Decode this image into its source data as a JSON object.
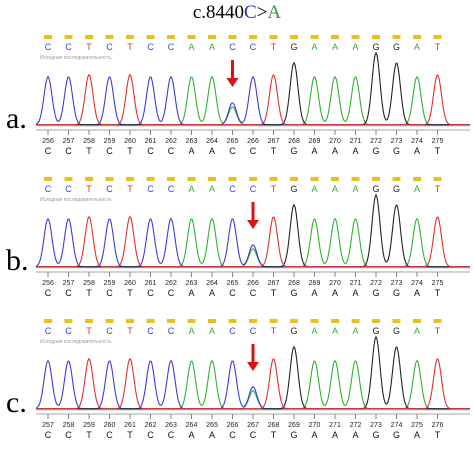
{
  "title": {
    "prefix": "c.8440",
    "ref": "C",
    "sep": ">",
    "alt": "A"
  },
  "caption_small": "Исходная последовательность",
  "colors": {
    "A": "#2fb22f",
    "C": "#3d3dd8",
    "G": "#222222",
    "T": "#e03030",
    "arrow": "#dd1111"
  },
  "panels": [
    {
      "label": "a.",
      "top_bases": [
        "C",
        "C",
        "T",
        "C",
        "T",
        "C",
        "C",
        "A",
        "A",
        "C",
        "C",
        "T",
        "G",
        "A",
        "A",
        "A",
        "G",
        "G",
        "A",
        "T"
      ],
      "bottom_bases": [
        "C",
        "C",
        "T",
        "C",
        "T",
        "C",
        "C",
        "A",
        "A",
        "C",
        "C",
        "T",
        "G",
        "A",
        "A",
        "A",
        "G",
        "G",
        "A",
        "T"
      ],
      "positions": [
        "256",
        "257",
        "258",
        "259",
        "260",
        "261",
        "262",
        "263",
        "264",
        "265",
        "266",
        "267",
        "268",
        "269",
        "270",
        "271",
        "272",
        "273",
        "274",
        "275"
      ],
      "mutant_index": 9
    },
    {
      "label": "b.",
      "top_bases": [
        "C",
        "C",
        "T",
        "C",
        "T",
        "C",
        "C",
        "A",
        "A",
        "C",
        "C",
        "T",
        "G",
        "A",
        "A",
        "A",
        "G",
        "G",
        "A",
        "T"
      ],
      "bottom_bases": [
        "C",
        "C",
        "T",
        "C",
        "T",
        "C",
        "C",
        "A",
        "A",
        "C",
        "C",
        "T",
        "G",
        "A",
        "A",
        "A",
        "G",
        "G",
        "A",
        "T"
      ],
      "positions": [
        "256",
        "257",
        "258",
        "259",
        "260",
        "261",
        "262",
        "263",
        "264",
        "265",
        "266",
        "267",
        "268",
        "269",
        "270",
        "271",
        "272",
        "273",
        "274",
        "275"
      ],
      "mutant_index": 10
    },
    {
      "label": "c.",
      "top_bases": [
        "C",
        "C",
        "T",
        "C",
        "T",
        "C",
        "C",
        "A",
        "A",
        "C",
        "C",
        "T",
        "G",
        "A",
        "A",
        "A",
        "G",
        "G",
        "A",
        "T"
      ],
      "bottom_bases": [
        "C",
        "C",
        "T",
        "C",
        "T",
        "C",
        "C",
        "A",
        "A",
        "C",
        "C",
        "T",
        "G",
        "A",
        "A",
        "A",
        "G",
        "G",
        "A",
        "T"
      ],
      "positions": [
        "257",
        "258",
        "259",
        "260",
        "261",
        "262",
        "263",
        "264",
        "265",
        "266",
        "267",
        "268",
        "269",
        "270",
        "271",
        "272",
        "273",
        "274",
        "275",
        "276"
      ],
      "mutant_index": 10
    }
  ]
}
